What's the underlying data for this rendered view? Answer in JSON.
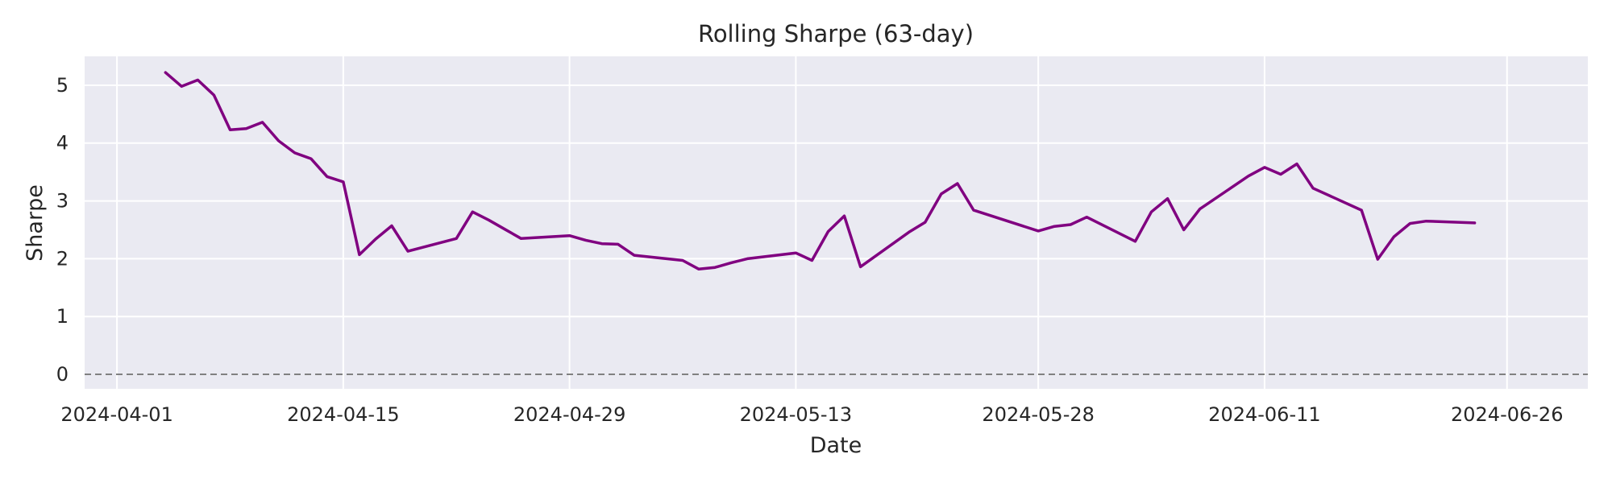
{
  "chart_data": {
    "type": "line",
    "title": "Rolling Sharpe (63-day)",
    "xlabel": "Date",
    "ylabel": "Sharpe",
    "x_tick_labels": [
      "2024-04-01",
      "2024-04-15",
      "2024-04-29",
      "2024-05-13",
      "2024-05-28",
      "2024-06-11",
      "2024-06-26"
    ],
    "x_range": [
      "2024-03-30",
      "2024-07-01"
    ],
    "y_ticks": [
      0,
      1,
      2,
      3,
      4,
      5
    ],
    "ylim": [
      -0.25,
      5.5
    ],
    "grid": true,
    "reference_line": {
      "y": 0,
      "style": "dashed",
      "color": "#808080"
    },
    "colors": {
      "series": "#800080",
      "background": "#eaeaf2",
      "grid": "#ffffff"
    },
    "series": [
      {
        "points": [
          [
            "2024-04-04",
            5.22
          ],
          [
            "2024-04-05",
            4.98
          ],
          [
            "2024-04-06",
            5.09
          ],
          [
            "2024-04-07",
            4.83
          ],
          [
            "2024-04-08",
            4.23
          ],
          [
            "2024-04-09",
            4.25
          ],
          [
            "2024-04-10",
            4.36
          ],
          [
            "2024-04-11",
            4.04
          ],
          [
            "2024-04-12",
            3.83
          ],
          [
            "2024-04-13",
            3.73
          ],
          [
            "2024-04-14",
            3.42
          ],
          [
            "2024-04-15",
            3.33
          ],
          [
            "2024-04-16",
            2.07
          ],
          [
            "2024-04-17",
            2.34
          ],
          [
            "2024-04-18",
            2.57
          ],
          [
            "2024-04-19",
            2.13
          ],
          [
            "2024-04-22",
            2.35
          ],
          [
            "2024-04-23",
            2.81
          ],
          [
            "2024-04-24",
            2.67
          ],
          [
            "2024-04-25",
            2.51
          ],
          [
            "2024-04-26",
            2.35
          ],
          [
            "2024-04-29",
            2.4
          ],
          [
            "2024-04-30",
            2.32
          ],
          [
            "2024-05-01",
            2.26
          ],
          [
            "2024-05-02",
            2.25
          ],
          [
            "2024-05-03",
            2.06
          ],
          [
            "2024-05-06",
            1.97
          ],
          [
            "2024-05-07",
            1.82
          ],
          [
            "2024-05-08",
            1.85
          ],
          [
            "2024-05-09",
            1.93
          ],
          [
            "2024-05-10",
            2.0
          ],
          [
            "2024-05-13",
            2.1
          ],
          [
            "2024-05-14",
            1.97
          ],
          [
            "2024-05-15",
            2.47
          ],
          [
            "2024-05-16",
            2.74
          ],
          [
            "2024-05-17",
            1.86
          ],
          [
            "2024-05-20",
            2.46
          ],
          [
            "2024-05-21",
            2.63
          ],
          [
            "2024-05-22",
            3.12
          ],
          [
            "2024-05-23",
            3.3
          ],
          [
            "2024-05-24",
            2.84
          ],
          [
            "2024-05-28",
            2.48
          ],
          [
            "2024-05-29",
            2.56
          ],
          [
            "2024-05-30",
            2.59
          ],
          [
            "2024-05-31",
            2.72
          ],
          [
            "2024-06-03",
            2.3
          ],
          [
            "2024-06-04",
            2.81
          ],
          [
            "2024-06-05",
            3.04
          ],
          [
            "2024-06-06",
            2.5
          ],
          [
            "2024-06-07",
            2.86
          ],
          [
            "2024-06-10",
            3.43
          ],
          [
            "2024-06-11",
            3.58
          ],
          [
            "2024-06-12",
            3.46
          ],
          [
            "2024-06-13",
            3.64
          ],
          [
            "2024-06-14",
            3.22
          ],
          [
            "2024-06-17",
            2.84
          ],
          [
            "2024-06-18",
            1.99
          ],
          [
            "2024-06-19",
            2.38
          ],
          [
            "2024-06-20",
            2.61
          ],
          [
            "2024-06-21",
            2.65
          ],
          [
            "2024-06-24",
            2.62
          ]
        ]
      }
    ]
  }
}
